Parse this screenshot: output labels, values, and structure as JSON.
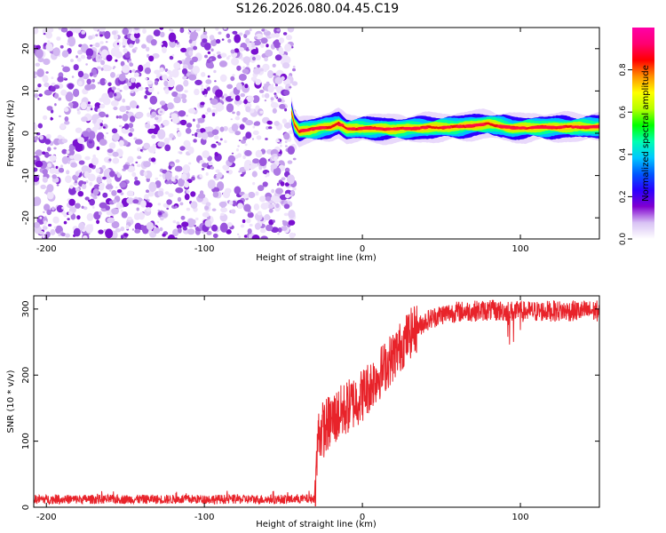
{
  "title": "S126.2026.080.04.45.C19",
  "chart_data": [
    {
      "type": "heatmap",
      "name": "spectrogram",
      "title": "S126.2026.080.04.45.C19",
      "xlabel": "Height of straight line (km)",
      "ylabel": "Frequency (Hz)",
      "xlim": [
        -208,
        150
      ],
      "ylim": [
        -25,
        25
      ],
      "xticks": [
        -200,
        -100,
        0,
        100
      ],
      "yticks": [
        -20,
        -10,
        0,
        10,
        20
      ],
      "noise_region_x": [
        -208,
        -45
      ],
      "signal_region_x": [
        -45,
        150
      ],
      "signal_frequency_trace": [
        {
          "x": -45,
          "f": 5.0
        },
        {
          "x": -43,
          "f": 2.0
        },
        {
          "x": -40,
          "f": 0.5
        },
        {
          "x": -35,
          "f": 0.8
        },
        {
          "x": -30,
          "f": 1.0
        },
        {
          "x": -25,
          "f": 1.4
        },
        {
          "x": -20,
          "f": 1.6
        },
        {
          "x": -15,
          "f": 2.3
        },
        {
          "x": -10,
          "f": 1.0
        },
        {
          "x": 0,
          "f": 1.2
        },
        {
          "x": 20,
          "f": 1.0
        },
        {
          "x": 40,
          "f": 1.3
        },
        {
          "x": 60,
          "f": 1.5
        },
        {
          "x": 80,
          "f": 2.2
        },
        {
          "x": 95,
          "f": 1.2
        },
        {
          "x": 110,
          "f": 1.4
        },
        {
          "x": 150,
          "f": 1.5
        }
      ],
      "colorbar": {
        "label": "Normalized spectral amplitude",
        "range": [
          0.0,
          1.0
        ],
        "ticks": [
          "0.0",
          "0.2",
          "0.4",
          "0.6",
          "0.8"
        ],
        "tick_values": [
          0.0,
          0.2,
          0.4,
          0.6,
          0.8
        ],
        "colors": [
          "#ffffff",
          "#d8c2f4",
          "#8000d0",
          "#2a00ff",
          "#0058ff",
          "#00c8ff",
          "#00ffb0",
          "#00ff00",
          "#b8ff00",
          "#ffff00",
          "#ff9000",
          "#ff0000",
          "#ff0070",
          "#ff00a8"
        ]
      },
      "colors": {
        "noise": "#8a2be2",
        "signal_core": "#e81010"
      }
    },
    {
      "type": "line",
      "name": "snr",
      "xlabel": "Height of straight line (km)",
      "ylabel": "SNR (10 * v/v)",
      "xlim": [
        -208,
        150
      ],
      "ylim": [
        0,
        320
      ],
      "xticks": [
        -200,
        -100,
        0,
        100
      ],
      "yticks": [
        0,
        100,
        200,
        300
      ],
      "series": [
        {
          "name": "SNR",
          "color": "#e8232a",
          "anchors": [
            {
              "x": -208,
              "y": 12
            },
            {
              "x": -150,
              "y": 12
            },
            {
              "x": -100,
              "y": 12
            },
            {
              "x": -50,
              "y": 12
            },
            {
              "x": -30,
              "y": 13
            },
            {
              "x": -28,
              "y": 110
            },
            {
              "x": -20,
              "y": 130
            },
            {
              "x": -10,
              "y": 150
            },
            {
              "x": 0,
              "y": 170
            },
            {
              "x": 10,
              "y": 200
            },
            {
              "x": 20,
              "y": 230
            },
            {
              "x": 30,
              "y": 262
            },
            {
              "x": 40,
              "y": 282
            },
            {
              "x": 50,
              "y": 292
            },
            {
              "x": 60,
              "y": 296
            },
            {
              "x": 80,
              "y": 298
            },
            {
              "x": 100,
              "y": 296
            },
            {
              "x": 120,
              "y": 297
            },
            {
              "x": 150,
              "y": 297
            }
          ]
        }
      ]
    }
  ]
}
